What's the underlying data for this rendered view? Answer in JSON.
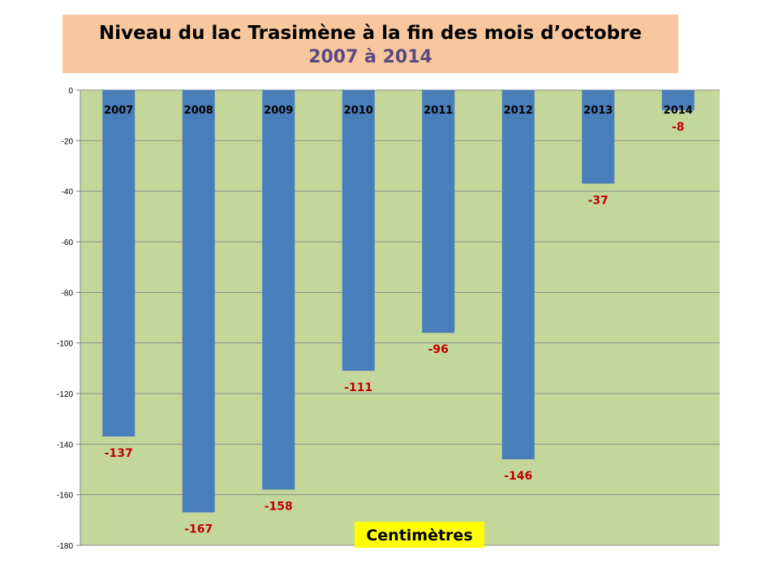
{
  "title": {
    "line1": "Niveau du lac Trasimène à la fin des mois d’octobre",
    "line2": "2007 à 2014"
  },
  "colors": {
    "plot_background": "#c4d79b",
    "bar": "#4a7ebb",
    "value_label": "#c00000",
    "title_box": "#f8c79e",
    "unit_box": "#ffff00",
    "subtitle": "#5b4a82"
  },
  "chart_data": {
    "type": "bar",
    "title": "Niveau du lac Trasimène à la fin des mois d’octobre 2007 à 2014",
    "xlabel": "",
    "ylabel": "Centimètres",
    "categories": [
      "2007",
      "2008",
      "2009",
      "2010",
      "2011",
      "2012",
      "2013",
      "2014"
    ],
    "values": [
      -137,
      -167,
      -158,
      -111,
      -96,
      -146,
      -37,
      -8
    ],
    "value_labels": [
      "-137",
      "-167",
      "-158",
      "-111",
      "-96",
      "-146",
      "-37",
      "-8"
    ],
    "ylim": [
      -180,
      0
    ],
    "yticks": [
      0,
      -20,
      -40,
      -60,
      -80,
      -100,
      -120,
      -140,
      -160,
      -180
    ],
    "grid": true,
    "legend": "none"
  }
}
